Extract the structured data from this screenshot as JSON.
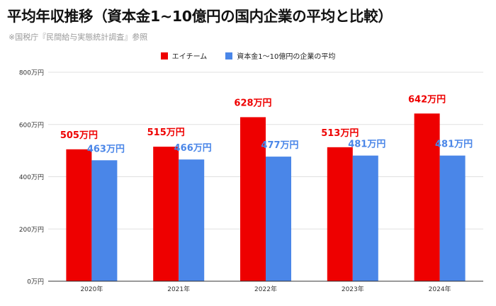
{
  "title": "平均年収推移（資本金1~10億円の国内企業の平均と比較）",
  "source": "※国税庁『民間給与実態統計調査』参照",
  "colors": {
    "company": "#ee0000",
    "average": "#4a86e8",
    "grid": "#e0e0e0",
    "axis": "#333333"
  },
  "chart_data": {
    "type": "bar",
    "categories": [
      "2020年",
      "2021年",
      "2022年",
      "2023年",
      "2024年"
    ],
    "series": [
      {
        "name": "エイチーム",
        "values": [
          505,
          515,
          628,
          513,
          642
        ],
        "labels": [
          "505万円",
          "515万円",
          "628万円",
          "513万円",
          "642万円"
        ]
      },
      {
        "name": "資本金1～10億円の企業の平均",
        "values": [
          463,
          466,
          477,
          481,
          481
        ],
        "labels": [
          "463万円",
          "466万円",
          "477万円",
          "481万円",
          "481万円"
        ]
      }
    ],
    "ylim": [
      0,
      800
    ],
    "yticks": [
      0,
      200,
      400,
      600,
      800
    ],
    "ytick_labels": [
      "0万円",
      "200万円",
      "400万円",
      "600万円",
      "800万円"
    ],
    "grid": true,
    "legend_position": "top-center"
  }
}
